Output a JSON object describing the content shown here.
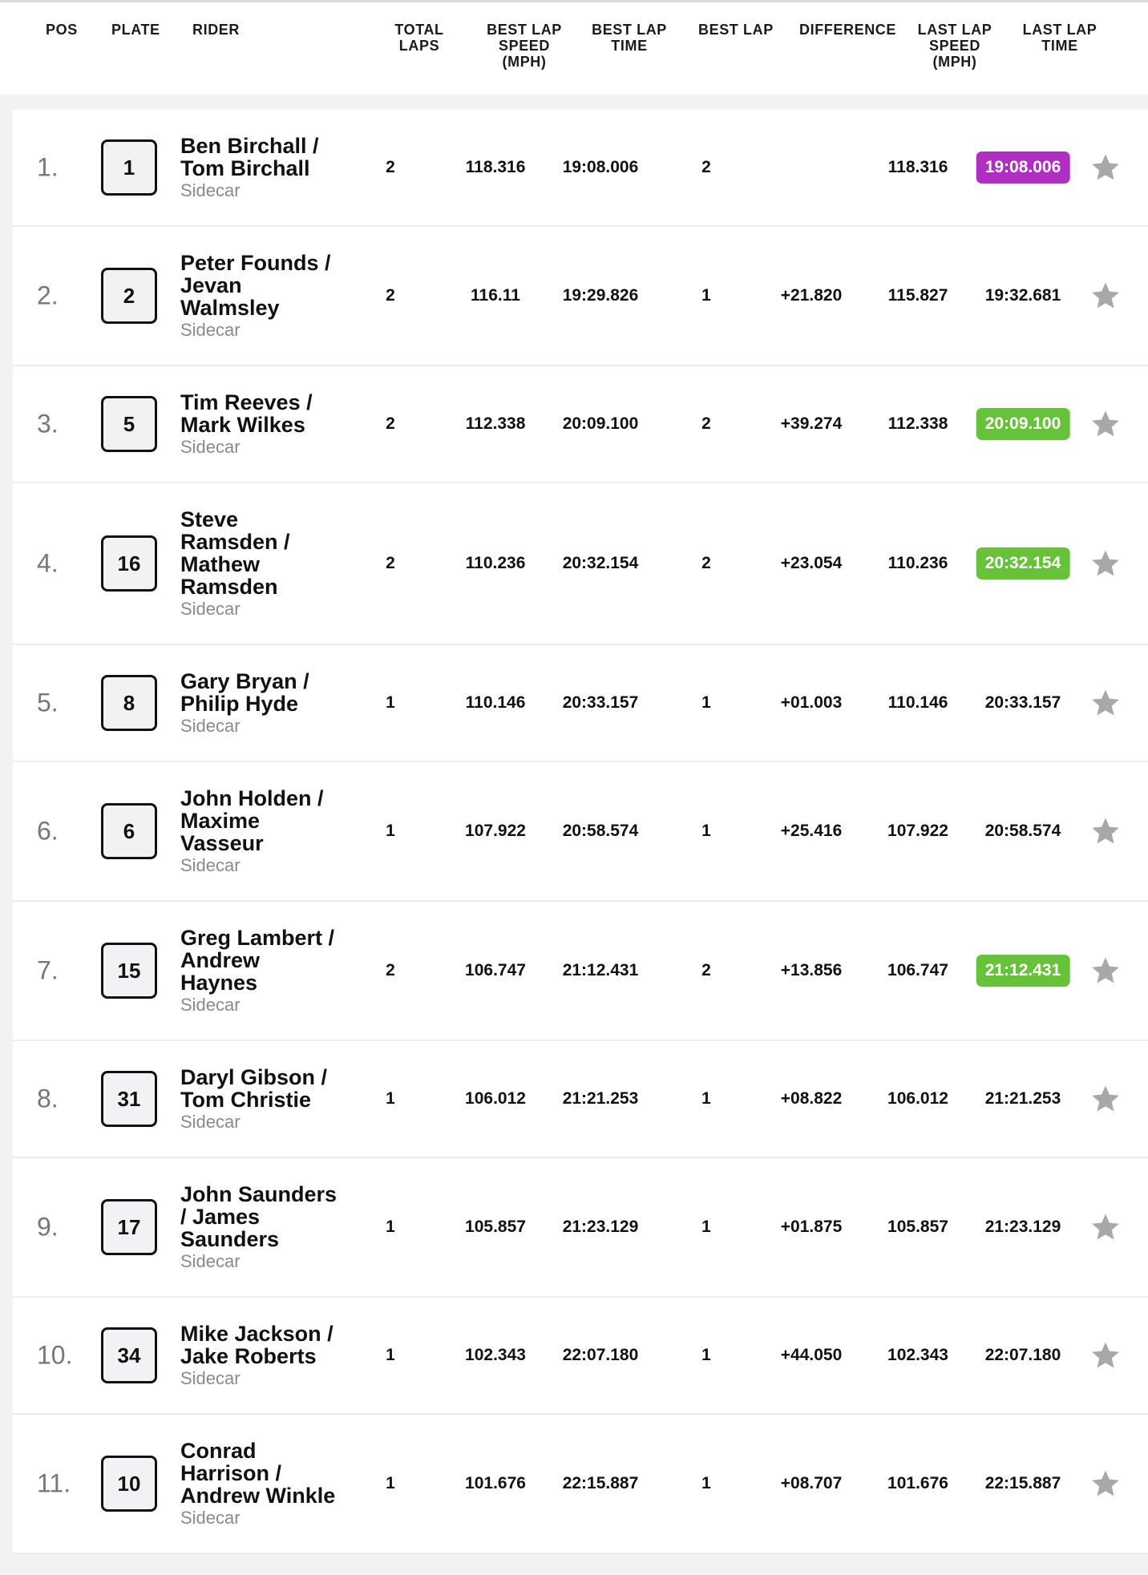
{
  "header": {
    "pos": "POS",
    "plate": "PLATE",
    "rider": "RIDER",
    "total_laps": [
      "TOTAL",
      "LAPS"
    ],
    "best_lap_speed": [
      "BEST LAP",
      "SPEED",
      "(MPH)"
    ],
    "best_lap_time": [
      "BEST LAP",
      "TIME"
    ],
    "best_lap": "BEST LAP",
    "difference": "DIFFERENCE",
    "last_lap_speed": [
      "LAST LAP",
      "SPEED",
      "(MPH)"
    ],
    "last_lap_time": [
      "LAST LAP",
      "TIME"
    ]
  },
  "colors": {
    "purple": "#b02ec2",
    "green": "#67c23a",
    "star": "#a8a8a8"
  },
  "rows": [
    {
      "pos": "1.",
      "plate": "1",
      "rider": [
        "Ben Birchall /",
        "Tom Birchall"
      ],
      "class": "Sidecar",
      "laps": "2",
      "best_speed": "118.316",
      "best_time": "19:08.006",
      "best_lap": "2",
      "diff": "",
      "last_speed": "118.316",
      "last_time": "19:08.006",
      "highlight": "purple",
      "star_icon": "star-icon"
    },
    {
      "pos": "2.",
      "plate": "2",
      "rider": [
        "Peter Founds /",
        "Jevan",
        "Walmsley"
      ],
      "class": "Sidecar",
      "laps": "2",
      "best_speed": "116.11",
      "best_time": "19:29.826",
      "best_lap": "1",
      "diff": "+21.820",
      "last_speed": "115.827",
      "last_time": "19:32.681",
      "highlight": "",
      "star_icon": "star-icon"
    },
    {
      "pos": "3.",
      "plate": "5",
      "rider": [
        "Tim Reeves /",
        "Mark Wilkes"
      ],
      "class": "Sidecar",
      "laps": "2",
      "best_speed": "112.338",
      "best_time": "20:09.100",
      "best_lap": "2",
      "diff": "+39.274",
      "last_speed": "112.338",
      "last_time": "20:09.100",
      "highlight": "green",
      "star_icon": "star-icon"
    },
    {
      "pos": "4.",
      "plate": "16",
      "rider": [
        "Steve",
        "Ramsden /",
        "Mathew",
        "Ramsden"
      ],
      "class": "Sidecar",
      "laps": "2",
      "best_speed": "110.236",
      "best_time": "20:32.154",
      "best_lap": "2",
      "diff": "+23.054",
      "last_speed": "110.236",
      "last_time": "20:32.154",
      "highlight": "green",
      "star_icon": "star-icon"
    },
    {
      "pos": "5.",
      "plate": "8",
      "rider": [
        "Gary Bryan /",
        "Philip Hyde"
      ],
      "class": "Sidecar",
      "laps": "1",
      "best_speed": "110.146",
      "best_time": "20:33.157",
      "best_lap": "1",
      "diff": "+01.003",
      "last_speed": "110.146",
      "last_time": "20:33.157",
      "highlight": "",
      "star_icon": "star-icon"
    },
    {
      "pos": "6.",
      "plate": "6",
      "rider": [
        "John Holden /",
        "Maxime",
        "Vasseur"
      ],
      "class": "Sidecar",
      "laps": "1",
      "best_speed": "107.922",
      "best_time": "20:58.574",
      "best_lap": "1",
      "diff": "+25.416",
      "last_speed": "107.922",
      "last_time": "20:58.574",
      "highlight": "",
      "star_icon": "star-icon"
    },
    {
      "pos": "7.",
      "plate": "15",
      "rider": [
        "Greg Lambert /",
        "Andrew",
        "Haynes"
      ],
      "class": "Sidecar",
      "laps": "2",
      "best_speed": "106.747",
      "best_time": "21:12.431",
      "best_lap": "2",
      "diff": "+13.856",
      "last_speed": "106.747",
      "last_time": "21:12.431",
      "highlight": "green",
      "star_icon": "star-icon"
    },
    {
      "pos": "8.",
      "plate": "31",
      "rider": [
        "Daryl Gibson /",
        "Tom Christie"
      ],
      "class": "Sidecar",
      "laps": "1",
      "best_speed": "106.012",
      "best_time": "21:21.253",
      "best_lap": "1",
      "diff": "+08.822",
      "last_speed": "106.012",
      "last_time": "21:21.253",
      "highlight": "",
      "star_icon": "star-icon"
    },
    {
      "pos": "9.",
      "plate": "17",
      "rider": [
        "John Saunders",
        "/ James",
        "Saunders"
      ],
      "class": "Sidecar",
      "laps": "1",
      "best_speed": "105.857",
      "best_time": "21:23.129",
      "best_lap": "1",
      "diff": "+01.875",
      "last_speed": "105.857",
      "last_time": "21:23.129",
      "highlight": "",
      "star_icon": "star-icon"
    },
    {
      "pos": "10.",
      "plate": "34",
      "rider": [
        "Mike Jackson /",
        "Jake Roberts"
      ],
      "class": "Sidecar",
      "laps": "1",
      "best_speed": "102.343",
      "best_time": "22:07.180",
      "best_lap": "1",
      "diff": "+44.050",
      "last_speed": "102.343",
      "last_time": "22:07.180",
      "highlight": "",
      "star_icon": "star-icon"
    },
    {
      "pos": "11.",
      "plate": "10",
      "rider": [
        "Conrad",
        "Harrison /",
        "Andrew Winkle"
      ],
      "class": "Sidecar",
      "laps": "1",
      "best_speed": "101.676",
      "best_time": "22:15.887",
      "best_lap": "1",
      "diff": "+08.707",
      "last_speed": "101.676",
      "last_time": "22:15.887",
      "highlight": "",
      "star_icon": "star-icon"
    }
  ]
}
